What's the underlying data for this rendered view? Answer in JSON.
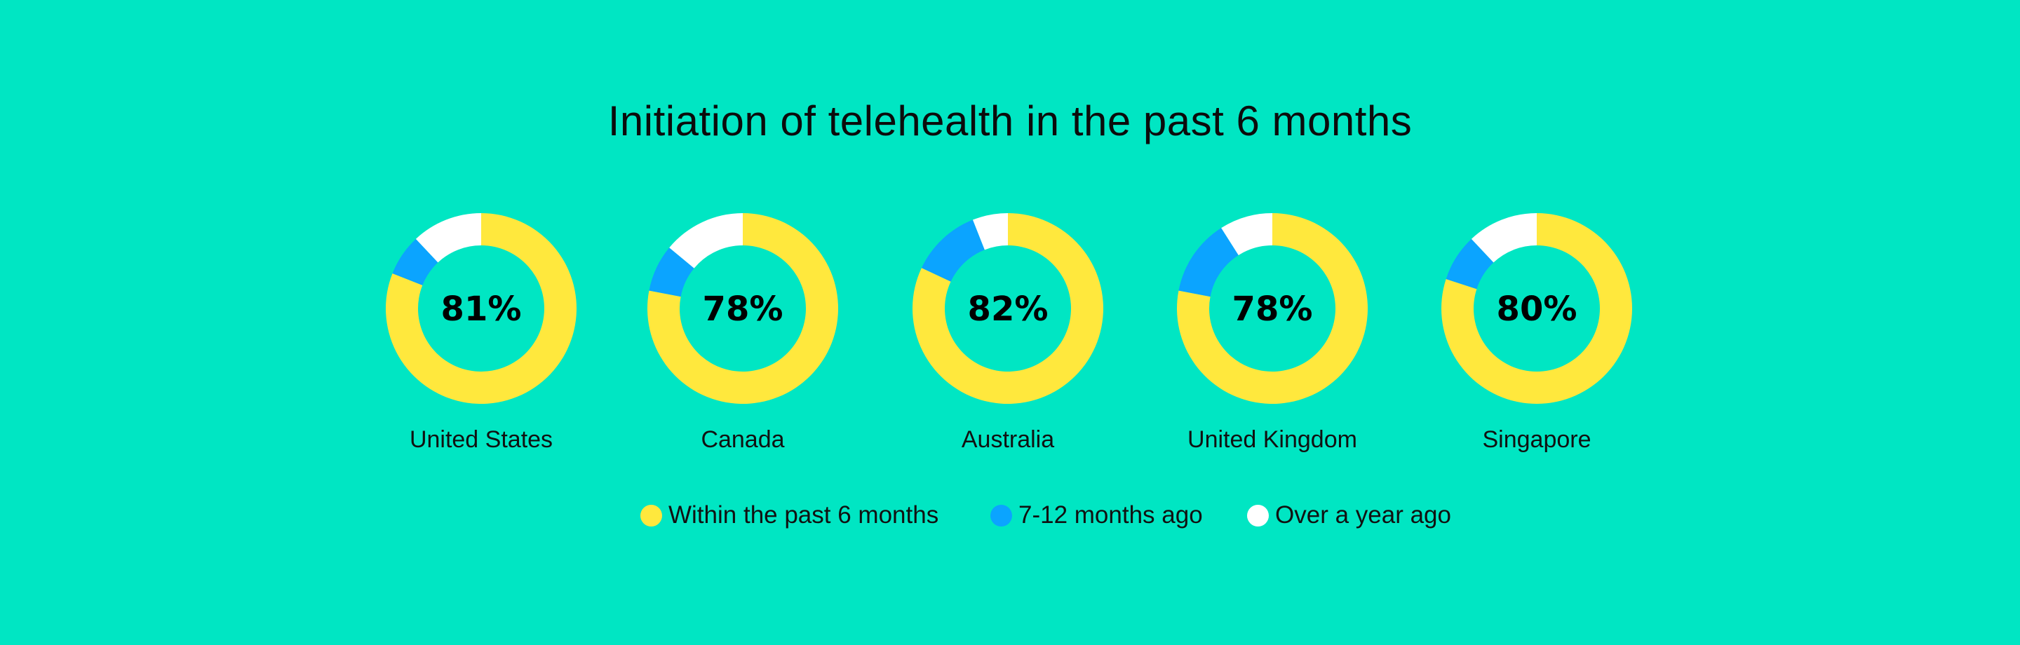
{
  "colors": {
    "background": "#00E6C3",
    "within_6_months": "#FFE83D",
    "7_12_months": "#0BA4FF",
    "over_a_year": "#FFFFFF"
  },
  "chart_data": {
    "type": "pie",
    "variant": "donut",
    "title": "Initiation of telehealth in the past 6 months",
    "categories": [
      "United States",
      "Canada",
      "Australia",
      "United Kingdom",
      "Singapore"
    ],
    "center_labels": [
      "81%",
      "78%",
      "82%",
      "78%",
      "80%"
    ],
    "series": [
      {
        "name": "Within the past 6 months",
        "values": [
          81,
          78,
          82,
          78,
          80
        ],
        "color": "#FFE83D"
      },
      {
        "name": "7-12 months ago",
        "values": [
          7,
          8,
          12,
          13,
          8
        ],
        "color": "#0BA4FF"
      },
      {
        "name": "Over a year ago",
        "values": [
          12,
          14,
          6,
          9,
          12
        ],
        "color": "#FFFFFF"
      }
    ],
    "legend": {
      "position": "bottom",
      "items": [
        {
          "label": "Within the past 6 months",
          "color": "#FFE83D"
        },
        {
          "label": "7-12 months ago",
          "color": "#0BA4FF"
        },
        {
          "label": "Over a year ago",
          "color": "#FFFFFF"
        }
      ]
    }
  }
}
